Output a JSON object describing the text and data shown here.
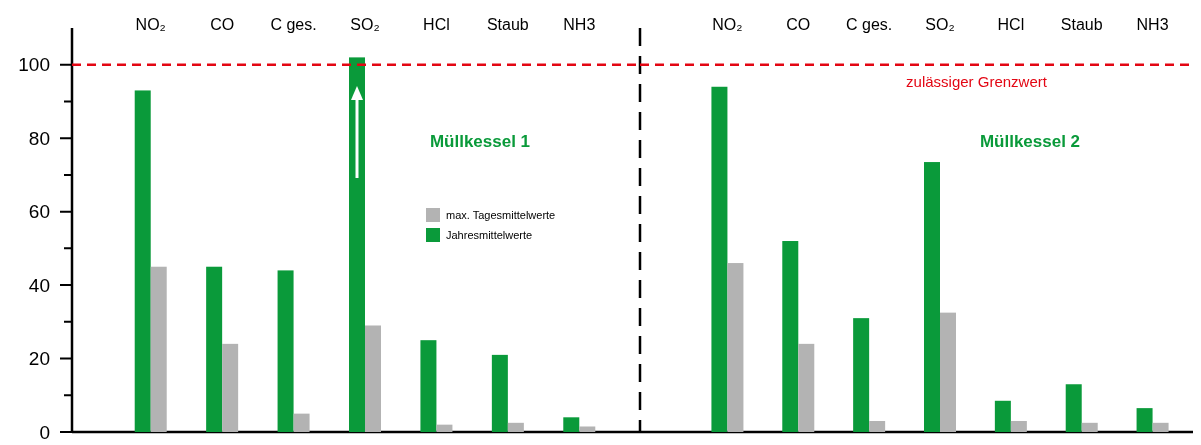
{
  "chart_data": [
    {
      "type": "bar",
      "title": "Müllkessel 1",
      "categories": [
        "NO₂",
        "CO",
        "C ges.",
        "SO₂",
        "HCl",
        "Staub",
        "NH3"
      ],
      "series": [
        {
          "name": "Jahresmittelwerte",
          "color": "#0a9a3a",
          "values": [
            93,
            45,
            44,
            102,
            25,
            21,
            4
          ]
        },
        {
          "name": "max. Tagesmittelwerte",
          "color": "#b3b3b3",
          "values": [
            45,
            24,
            5,
            29,
            2,
            2.5,
            1.5
          ]
        }
      ],
      "ylim": [
        0,
        110
      ],
      "yticks": [
        0,
        {
          "value": 10,
          "label": null
        },
        20,
        {
          "value": 30,
          "label": null
        },
        40,
        {
          "value": 50,
          "label": null
        },
        60,
        {
          "value": 70,
          "label": null
        },
        80,
        {
          "value": 90,
          "label": null
        },
        100
      ],
      "legend": "right",
      "ref_lines": [
        {
          "axis": "y",
          "value": 100,
          "color": "#e30613",
          "line_style": "dashed"
        }
      ]
    },
    {
      "type": "bar",
      "title": "Müllkessel 2",
      "categories": [
        "NO₂",
        "CO",
        "C ges.",
        "SO₂",
        "HCl",
        "Staub",
        "NH3"
      ],
      "series": [
        {
          "color": "#0a9a3a",
          "values": [
            94,
            52,
            31,
            73.5,
            8.5,
            13,
            6.5
          ]
        },
        {
          "color": "#b3b3b3",
          "values": [
            46,
            24,
            3,
            32.5,
            3,
            2.5,
            2.5
          ]
        }
      ],
      "ylim": [
        0,
        110
      ],
      "tick_labels": "x",
      "ref_lines": [
        {
          "axis": "y",
          "value": 100,
          "label": "zulässiger Grenzwert",
          "color": "#e30613",
          "line_style": "dashed"
        }
      ]
    }
  ]
}
